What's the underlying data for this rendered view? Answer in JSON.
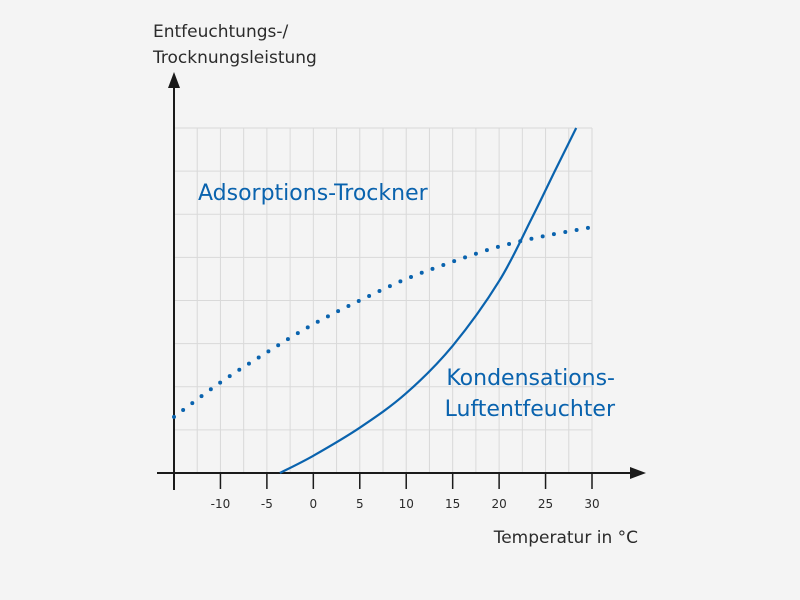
{
  "chart_data": {
    "type": "line",
    "ylabel_line1": "Entfeuchtungs-/",
    "ylabel_line2": "Trocknungsleistung",
    "xlabel": "Temperatur in °C",
    "xlim": [
      -15,
      30
    ],
    "ylim": [
      0,
      8
    ],
    "x_ticks": [
      -10,
      -5,
      0,
      5,
      10,
      15,
      20,
      25,
      30
    ],
    "x_tick_labels": [
      "-10",
      "-5",
      "0",
      "5",
      "10",
      "15",
      "20",
      "25",
      "30"
    ],
    "grid": true,
    "y_tick_labels_shown": false,
    "series": [
      {
        "name": "Adsorptions-Trockner",
        "style": "dotted",
        "color": "#0a63ae",
        "x": [
          -15,
          -10,
          -5,
          0,
          5,
          10,
          15,
          20,
          25,
          30
        ],
        "y": [
          1.3,
          2.1,
          2.8,
          3.45,
          4.0,
          4.5,
          4.9,
          5.25,
          5.5,
          5.7
        ]
      },
      {
        "name": "Kondensations-Luftentfeuchter",
        "style": "solid",
        "color": "#0a63ae",
        "x": [
          -3.6,
          0,
          5,
          10,
          15,
          20,
          23.5,
          26,
          28.3
        ],
        "y": [
          0.0,
          0.4,
          1.05,
          1.85,
          2.95,
          4.45,
          5.9,
          7.0,
          8.0
        ]
      }
    ],
    "annotations": [
      {
        "line1": "Adsorptions-Trockner",
        "line2": ""
      },
      {
        "line1": "Kondensations-",
        "line2": "Luftentfeuchter"
      }
    ]
  }
}
